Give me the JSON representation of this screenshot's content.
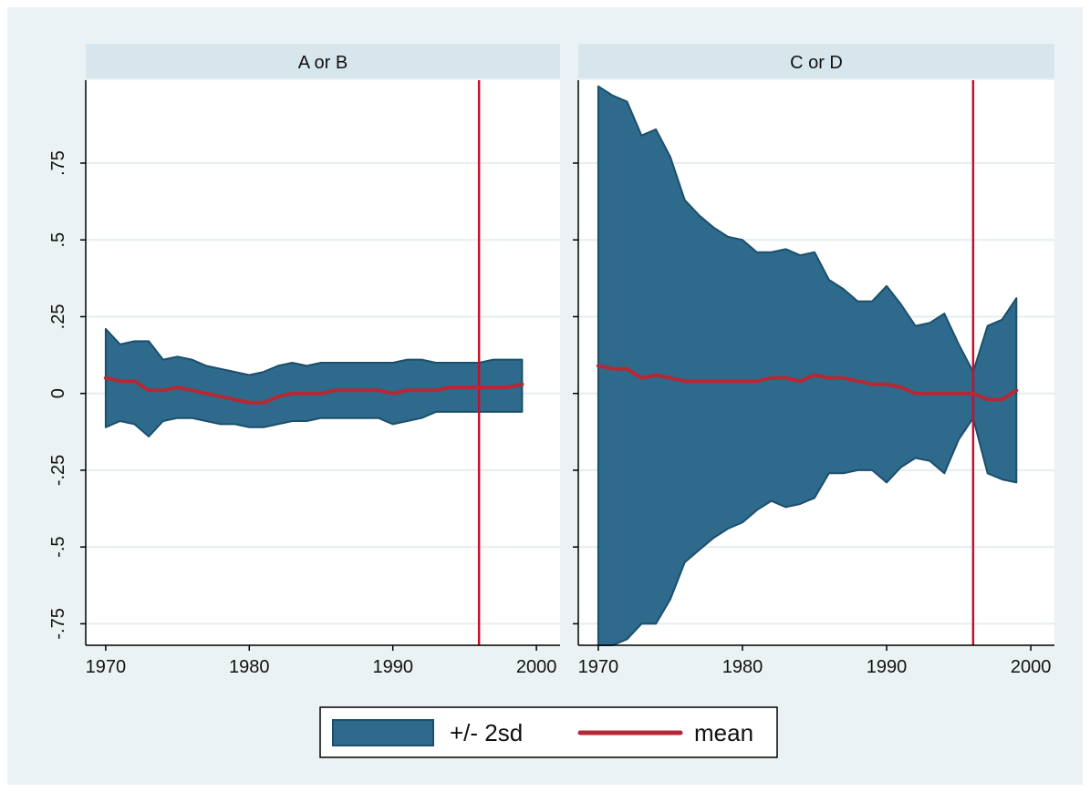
{
  "chart_data": {
    "type": "area",
    "colors": {
      "background": "#eaf2f3",
      "plot_background": "#ffffff",
      "strip": "#d7e6ed",
      "band": "#2e6a8c",
      "band_edge": "#1b4f6c",
      "mean": "#b52834",
      "reference_line": "#c8102e",
      "grid": "#e6eef0"
    },
    "shared": {
      "xlim": [
        1969.5,
        2000.5
      ],
      "ylim": [
        -0.82,
        1.02
      ],
      "x_ticks": [
        1970,
        1980,
        1990,
        2000
      ],
      "x_tick_labels": [
        "1970",
        "1980",
        "1990",
        "2000"
      ],
      "y_ticks": [
        -0.75,
        -0.5,
        -0.25,
        0,
        0.25,
        0.5,
        0.75
      ],
      "y_tick_labels": [
        "-.75",
        "-.5",
        "-.25",
        "0",
        ".25",
        ".5",
        ".75"
      ],
      "reference_x": 1996,
      "grid": true
    },
    "legend": {
      "position": "bottom",
      "entries": [
        {
          "label": "+/- 2sd",
          "kind": "band"
        },
        {
          "label": "mean",
          "kind": "line"
        }
      ]
    },
    "panels": [
      {
        "title": "A or B",
        "x": [
          1970,
          1971,
          1972,
          1973,
          1974,
          1975,
          1976,
          1977,
          1978,
          1979,
          1980,
          1981,
          1982,
          1983,
          1984,
          1985,
          1986,
          1987,
          1988,
          1989,
          1990,
          1991,
          1992,
          1993,
          1994,
          1995,
          1996,
          1997,
          1998,
          1999
        ],
        "mean": [
          0.05,
          0.04,
          0.04,
          0.01,
          0.01,
          0.02,
          0.01,
          0.0,
          -0.01,
          -0.02,
          -0.03,
          -0.03,
          -0.01,
          0.0,
          0.0,
          0.0,
          0.01,
          0.01,
          0.01,
          0.01,
          0.0,
          0.01,
          0.01,
          0.01,
          0.02,
          0.02,
          0.02,
          0.02,
          0.02,
          0.03
        ],
        "upper": [
          0.21,
          0.16,
          0.17,
          0.17,
          0.11,
          0.12,
          0.11,
          0.09,
          0.08,
          0.07,
          0.06,
          0.07,
          0.09,
          0.1,
          0.09,
          0.1,
          0.1,
          0.1,
          0.1,
          0.1,
          0.1,
          0.11,
          0.11,
          0.1,
          0.1,
          0.1,
          0.1,
          0.11,
          0.11,
          0.11
        ],
        "lower": [
          -0.11,
          -0.09,
          -0.1,
          -0.14,
          -0.09,
          -0.08,
          -0.08,
          -0.09,
          -0.1,
          -0.1,
          -0.11,
          -0.11,
          -0.1,
          -0.09,
          -0.09,
          -0.08,
          -0.08,
          -0.08,
          -0.08,
          -0.08,
          -0.1,
          -0.09,
          -0.08,
          -0.06,
          -0.06,
          -0.06,
          -0.06,
          -0.06,
          -0.06,
          -0.06
        ]
      },
      {
        "title": "C or D",
        "x": [
          1970,
          1971,
          1972,
          1973,
          1974,
          1975,
          1976,
          1977,
          1978,
          1979,
          1980,
          1981,
          1982,
          1983,
          1984,
          1985,
          1986,
          1987,
          1988,
          1989,
          1990,
          1991,
          1992,
          1993,
          1994,
          1995,
          1996,
          1997,
          1998,
          1999
        ],
        "mean": [
          0.09,
          0.08,
          0.08,
          0.05,
          0.06,
          0.05,
          0.04,
          0.04,
          0.04,
          0.04,
          0.04,
          0.04,
          0.05,
          0.05,
          0.04,
          0.06,
          0.05,
          0.05,
          0.04,
          0.03,
          0.03,
          0.02,
          0.0,
          0.0,
          0.0,
          0.0,
          0.0,
          -0.02,
          -0.02,
          0.01
        ],
        "upper": [
          1.0,
          0.97,
          0.95,
          0.84,
          0.86,
          0.77,
          0.63,
          0.58,
          0.54,
          0.51,
          0.5,
          0.46,
          0.46,
          0.47,
          0.45,
          0.46,
          0.37,
          0.34,
          0.3,
          0.3,
          0.35,
          0.29,
          0.22,
          0.23,
          0.26,
          0.16,
          0.07,
          0.22,
          0.24,
          0.31
        ],
        "lower": [
          -0.82,
          -0.82,
          -0.8,
          -0.75,
          -0.75,
          -0.67,
          -0.55,
          -0.51,
          -0.47,
          -0.44,
          -0.42,
          -0.38,
          -0.35,
          -0.37,
          -0.36,
          -0.34,
          -0.26,
          -0.26,
          -0.25,
          -0.25,
          -0.29,
          -0.24,
          -0.21,
          -0.22,
          -0.26,
          -0.15,
          -0.08,
          -0.26,
          -0.28,
          -0.29
        ]
      }
    ]
  }
}
